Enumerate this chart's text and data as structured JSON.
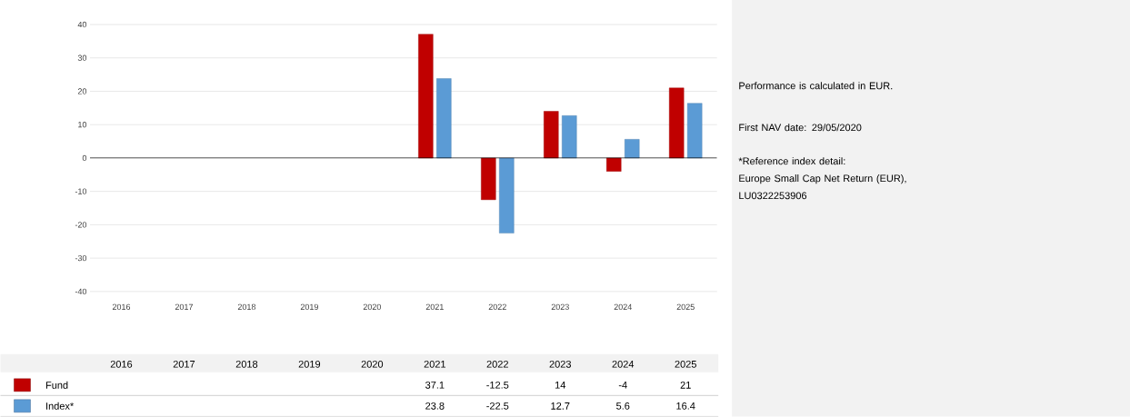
{
  "chart_data": {
    "type": "bar",
    "categories": [
      "2016",
      "2017",
      "2018",
      "2019",
      "2020",
      "2021",
      "2022",
      "2023",
      "2024",
      "2025"
    ],
    "series": [
      {
        "name": "Fund",
        "color": "#c00000",
        "values": [
          null,
          null,
          null,
          null,
          null,
          37.1,
          -12.5,
          14,
          -4,
          21
        ]
      },
      {
        "name": "Index*",
        "color": "#5b9bd5",
        "values": [
          null,
          null,
          null,
          null,
          null,
          23.8,
          -22.5,
          12.7,
          5.6,
          16.4
        ]
      }
    ],
    "ylim": [
      -40,
      40
    ],
    "yticks": [
      -40,
      -30,
      -20,
      -10,
      0,
      10,
      20,
      30,
      40
    ],
    "grid": "y",
    "legend": "bottom",
    "data_labels": true,
    "annotations": [
      "Performance is calculated in EUR.",
      "First NAV date: 29/05/2020",
      "*Reference index detail:",
      "Europe Small Cap Net Return (EUR), LU0322253906"
    ]
  }
}
